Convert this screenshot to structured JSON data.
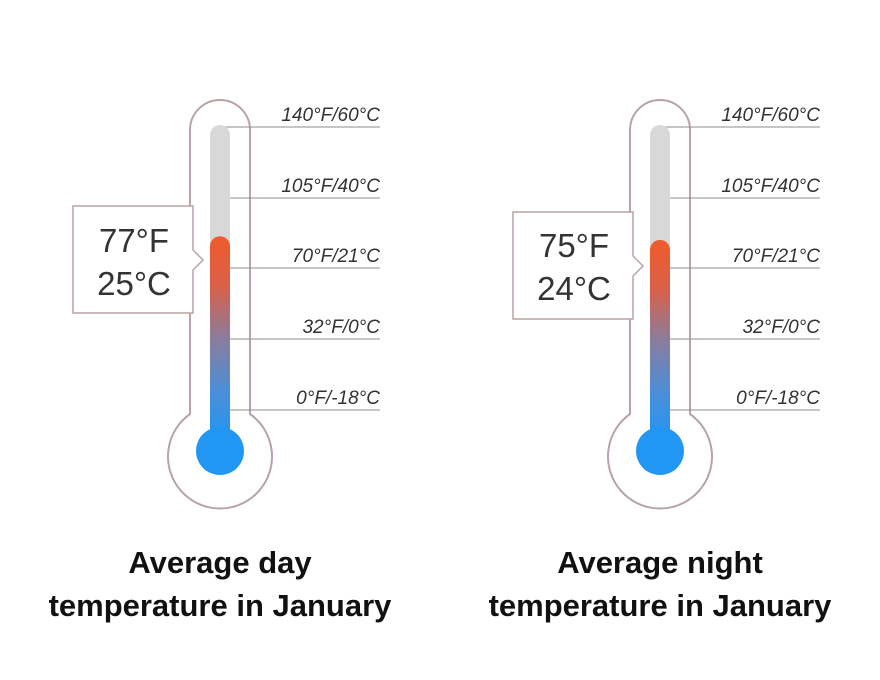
{
  "scale_labels": [
    "140°F/60°C",
    "105°F/40°C",
    "70°F/21°C",
    "32°F/0°C",
    "0°F/-18°C"
  ],
  "scale_celsius": [
    60,
    40,
    21,
    0,
    -18
  ],
  "colors": {
    "outline": "#b8a4a4",
    "tube_empty": "#d8d8d8",
    "fill_hot": "#f15a2b",
    "fill_cold": "#2196f3",
    "scale_line": "#8c8c8c",
    "text": "#333333"
  },
  "thermometers": [
    {
      "readout_f": "77°F",
      "readout_c": "25°C",
      "value_c": 25,
      "caption_line1": "Average day",
      "caption_line2": "temperature in January"
    },
    {
      "readout_f": "75°F",
      "readout_c": "24°C",
      "value_c": 24,
      "caption_line1": "Average night",
      "caption_line2": "temperature in January"
    }
  ]
}
